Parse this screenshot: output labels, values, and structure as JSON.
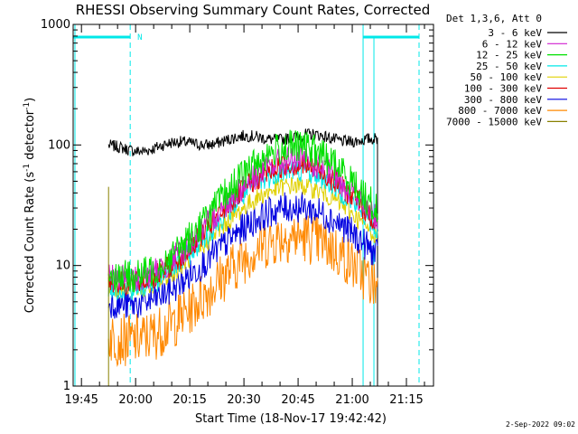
{
  "chart_data": {
    "type": "line",
    "title": "RHESSI Observing Summary Count Rates, Corrected",
    "xlabel": "Start Time (18-Nov-17 19:42:42)",
    "ylabel_main": "Corrected Count Rate (s",
    "ylabel_sup1": "-1",
    "ylabel_mid": " detector",
    "ylabel_sup2": "-1",
    "ylabel_end": ")",
    "yscale": "log",
    "ylim": [
      1,
      1000
    ],
    "xlim": [
      "19:42:42",
      "21:22:30"
    ],
    "x_ticks": [
      "19:45",
      "20:00",
      "20:15",
      "20:30",
      "20:45",
      "21:00",
      "21:15"
    ],
    "y_ticks": [
      "1",
      "10",
      "100",
      "1000"
    ],
    "legend_title": "Det 1,3,6, Att 0",
    "series": [
      {
        "name": "3 - 6 keV",
        "color": "#000000"
      },
      {
        "name": "6 - 12 keV",
        "color": "#d020d0"
      },
      {
        "name": "12 - 25 keV",
        "color": "#00e000"
      },
      {
        "name": "25 - 50 keV",
        "color": "#00e8e8"
      },
      {
        "name": "50 - 100 keV",
        "color": "#e0d000"
      },
      {
        "name": "100 - 300 keV",
        "color": "#e00000"
      },
      {
        "name": "300 - 800 keV",
        "color": "#0000e0"
      },
      {
        "name": "800 - 7000 keV",
        "color": "#ff8800"
      },
      {
        "name": "7000 - 15000 keV",
        "color": "#888000"
      }
    ],
    "data_window": {
      "start": "19:52:30",
      "end": "21:07:00"
    },
    "spacecraft_bars": [
      {
        "label": "",
        "start": "19:42:42",
        "end": "19:58:30"
      },
      {
        "label": "",
        "start": "21:03:00",
        "end": "21:18:30"
      }
    ],
    "bar_marker": "N",
    "timestamp": "2-Sep-2022 09:02"
  }
}
